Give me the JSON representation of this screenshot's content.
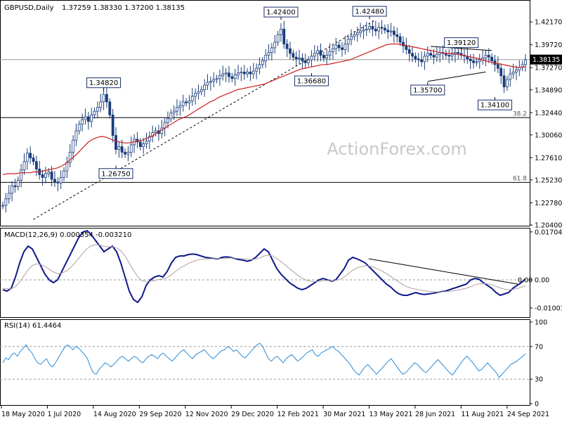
{
  "header": {
    "symbol": "GBPUSD,Daily",
    "ohlc": "1.37259 1.38330 1.37200 1.38135"
  },
  "watermark": "ActionForex.com",
  "colors": {
    "background": "#ffffff",
    "candles": "#1a3d7a",
    "moving_average": "#cc1f1f",
    "macd_line": "#101a8a",
    "signal_line": "#b0a0a0",
    "rsi_line": "#2a8ad4",
    "levels": "#000000",
    "label_box": "#1a2e6a"
  },
  "chart_data": [
    {
      "type": "candlestick",
      "title": "GBPUSD,Daily",
      "subtitle": "1.37259 1.38330 1.37200 1.38135",
      "x_ticks": [
        "18 May 2020",
        "1 Jul 2020",
        "14 Aug 2020",
        "29 Sep 2020",
        "12 Nov 2020",
        "29 Dec 2020",
        "12 Feb 2021",
        "30 Mar 2021",
        "13 May 2021",
        "28 Jun 2021",
        "11 Aug 2021",
        "24 Sep 2021"
      ],
      "y_ticks": [
        "1.42170",
        "1.39720",
        "1.37270",
        "1.34890",
        "1.32440",
        "1.30060",
        "1.27610",
        "1.25230",
        "1.22780",
        "1.20400"
      ],
      "ylim": [
        1.204,
        1.4437
      ],
      "current_price": "1.38135",
      "current_value": 1.38135,
      "annotations": [
        {
          "label": "1.34820",
          "x_index": 33,
          "y": 1.3482
        },
        {
          "label": "1.26750",
          "x_index": 37,
          "y": 1.2675
        },
        {
          "label": "1.42400",
          "x_index": 91,
          "y": 1.424
        },
        {
          "label": "1.36680",
          "x_index": 101,
          "y": 1.3668
        },
        {
          "label": "1.42480",
          "x_index": 120,
          "y": 1.4248
        },
        {
          "label": "1.35700",
          "x_index": 139,
          "y": 1.357
        },
        {
          "label": "1.39120",
          "x_index": 150,
          "y": 1.3912
        },
        {
          "label": "1.34100",
          "x_index": 161,
          "y": 1.341
        }
      ],
      "fib_levels": [
        {
          "label": "38.2",
          "value": 1.3191
        },
        {
          "label": "61.8",
          "value": 1.2497
        }
      ],
      "close": [
        1.225,
        1.232,
        1.238,
        1.246,
        1.245,
        1.252,
        1.263,
        1.272,
        1.281,
        1.276,
        1.272,
        1.264,
        1.258,
        1.255,
        1.259,
        1.261,
        1.253,
        1.25,
        1.249,
        1.255,
        1.262,
        1.271,
        1.282,
        1.295,
        1.305,
        1.312,
        1.317,
        1.32,
        1.315,
        1.322,
        1.326,
        1.33,
        1.336,
        1.344,
        1.336,
        1.322,
        1.3,
        1.285,
        1.288,
        1.282,
        1.28,
        1.282,
        1.29,
        1.296,
        1.293,
        1.288,
        1.291,
        1.294,
        1.299,
        1.303,
        1.305,
        1.302,
        1.308,
        1.314,
        1.318,
        1.324,
        1.326,
        1.33,
        1.332,
        1.336,
        1.335,
        1.337,
        1.342,
        1.345,
        1.347,
        1.349,
        1.354,
        1.357,
        1.358,
        1.36,
        1.361,
        1.364,
        1.366,
        1.367,
        1.363,
        1.361,
        1.365,
        1.367,
        1.368,
        1.366,
        1.368,
        1.366,
        1.369,
        1.372,
        1.376,
        1.38,
        1.386,
        1.389,
        1.394,
        1.4,
        1.408,
        1.414,
        1.398,
        1.393,
        1.388,
        1.384,
        1.382,
        1.383,
        1.38,
        1.378,
        1.381,
        1.385,
        1.388,
        1.391,
        1.386,
        1.383,
        1.386,
        1.39,
        1.393,
        1.397,
        1.394,
        1.392,
        1.398,
        1.403,
        1.406,
        1.408,
        1.41,
        1.412,
        1.413,
        1.414,
        1.417,
        1.414,
        1.412,
        1.416,
        1.415,
        1.413,
        1.411,
        1.412,
        1.408,
        1.406,
        1.4,
        1.396,
        1.392,
        1.388,
        1.385,
        1.382,
        1.381,
        1.379,
        1.385,
        1.388,
        1.386,
        1.384,
        1.387,
        1.389,
        1.388,
        1.386,
        1.385,
        1.387,
        1.389,
        1.388,
        1.386,
        1.385,
        1.382,
        1.38,
        1.378,
        1.379,
        1.381,
        1.383,
        1.386,
        1.384,
        1.38,
        1.376,
        1.372,
        1.364,
        1.352,
        1.36,
        1.366,
        1.368,
        1.37,
        1.373,
        1.376,
        1.381
      ],
      "ma": [
        1.258,
        1.259,
        1.259,
        1.259,
        1.26,
        1.26,
        1.26,
        1.261,
        1.261,
        1.262,
        1.263,
        1.264,
        1.265,
        1.267,
        1.27,
        1.274,
        1.278,
        1.283,
        1.288,
        1.293,
        1.296,
        1.298,
        1.299,
        1.298,
        1.296,
        1.294,
        1.293,
        1.292,
        1.292,
        1.293,
        1.294,
        1.295,
        1.297,
        1.299,
        1.302,
        1.305,
        1.308,
        1.311,
        1.314,
        1.317,
        1.319,
        1.321,
        1.324,
        1.327,
        1.33,
        1.333,
        1.336,
        1.338,
        1.341,
        1.343,
        1.345,
        1.347,
        1.349,
        1.35,
        1.351,
        1.352,
        1.353,
        1.354,
        1.355,
        1.357,
        1.359,
        1.361,
        1.363,
        1.365,
        1.367,
        1.369,
        1.371,
        1.372,
        1.373,
        1.374,
        1.375,
        1.376,
        1.376,
        1.377,
        1.378,
        1.379,
        1.38,
        1.381,
        1.383,
        1.385,
        1.387,
        1.389,
        1.391,
        1.393,
        1.395,
        1.397,
        1.398,
        1.398,
        1.398,
        1.397,
        1.396,
        1.395,
        1.394,
        1.393,
        1.392,
        1.391,
        1.39,
        1.389,
        1.388,
        1.388,
        1.388,
        1.387,
        1.386,
        1.385,
        1.384,
        1.383,
        1.382,
        1.38,
        1.379,
        1.378,
        1.377,
        1.376,
        1.375,
        1.374,
        1.373,
        1.373,
        1.374
      ]
    },
    {
      "type": "line",
      "title": "MACD(12,26,9) 0.000354 -0.003210",
      "y_ticks": [
        "0.017047",
        "0.00",
        "-0.010013"
      ],
      "ylim": [
        -0.013,
        0.018
      ],
      "zero_label_left": "0.00",
      "series": [
        {
          "name": "MACD",
          "values": [
            -0.0035,
            -0.004,
            -0.003,
            0.001,
            0.006,
            0.01,
            0.012,
            0.011,
            0.008,
            0.005,
            0.002,
            0.0,
            -0.001,
            0.0,
            0.003,
            0.006,
            0.009,
            0.012,
            0.015,
            0.017,
            0.0175,
            0.016,
            0.014,
            0.012,
            0.01,
            0.011,
            0.012,
            0.01,
            0.006,
            0.001,
            -0.004,
            -0.007,
            -0.008,
            -0.006,
            -0.002,
            0.0,
            0.001,
            0.0015,
            0.001,
            0.003,
            0.006,
            0.008,
            0.0085,
            0.0085,
            0.009,
            0.0092,
            0.009,
            0.0085,
            0.008,
            0.0078,
            0.0076,
            0.0074,
            0.008,
            0.0082,
            0.008,
            0.0076,
            0.0072,
            0.007,
            0.0066,
            0.007,
            0.008,
            0.0095,
            0.011,
            0.01,
            0.007,
            0.004,
            0.002,
            0.0005,
            -0.001,
            -0.002,
            -0.003,
            -0.0035,
            -0.003,
            -0.002,
            -0.001,
            0.0,
            0.0005,
            0.0,
            -0.0005,
            0.0,
            0.002,
            0.004,
            0.007,
            0.008,
            0.0075,
            0.0068,
            0.006,
            0.0045,
            0.003,
            0.0015,
            0.0,
            -0.0015,
            -0.0025,
            -0.004,
            -0.005,
            -0.0055,
            -0.0055,
            -0.005,
            -0.0045,
            -0.005,
            -0.0052,
            -0.005,
            -0.0048,
            -0.0045,
            -0.0042,
            -0.004,
            -0.0035,
            -0.003,
            -0.0025,
            -0.002,
            -0.0015,
            0.0,
            0.0005,
            0.0002,
            -0.001,
            -0.002,
            -0.003,
            -0.0045,
            -0.0055,
            -0.005,
            -0.0045,
            -0.003,
            -0.002,
            -0.001,
            0.0003
          ]
        },
        {
          "name": "Signal",
          "values": [
            -0.003,
            -0.0032,
            -0.0032,
            -0.0024,
            -0.0008,
            0.0014,
            0.0036,
            0.0051,
            0.0057,
            0.0055,
            0.0048,
            0.0038,
            0.0028,
            0.0022,
            0.0024,
            0.0031,
            0.0043,
            0.0058,
            0.0076,
            0.0095,
            0.0111,
            0.0121,
            0.0125,
            0.0124,
            0.0119,
            0.0117,
            0.0118,
            0.0114,
            0.0103,
            0.0085,
            0.006,
            0.0034,
            0.0011,
            -0.0003,
            -0.0006,
            -0.0005,
            -0.0002,
            0.0001,
            0.0003,
            0.0008,
            0.0018,
            0.003,
            0.0041,
            0.005,
            0.0058,
            0.0065,
            0.007,
            0.0073,
            0.0074,
            0.0075,
            0.0075,
            0.0075,
            0.0076,
            0.0077,
            0.0078,
            0.0077,
            0.0076,
            0.0075,
            0.0073,
            0.0072,
            0.0074,
            0.0078,
            0.0085,
            0.0088,
            0.0085,
            0.0076,
            0.0065,
            0.0053,
            0.004,
            0.0028,
            0.0016,
            0.0006,
            -0.0001,
            -0.0005,
            -0.0006,
            -0.0005,
            -0.0003,
            -0.0002,
            -0.0003,
            -0.0002,
            0.0002,
            0.001,
            0.0022,
            0.0034,
            0.0042,
            0.0047,
            0.005,
            0.0049,
            0.0045,
            0.0039,
            0.0031,
            0.0022,
            0.0012,
            0.0002,
            -0.0008,
            -0.0018,
            -0.0025,
            -0.003,
            -0.0033,
            -0.0036,
            -0.0039,
            -0.0041,
            -0.0042,
            -0.0043,
            -0.0043,
            -0.0042,
            -0.0041,
            -0.0039,
            -0.0036,
            -0.0033,
            -0.003,
            -0.0024,
            -0.0018,
            -0.0014,
            -0.0013,
            -0.0014,
            -0.0017,
            -0.0023,
            -0.0029,
            -0.0033,
            -0.0035,
            -0.0034,
            -0.0031,
            -0.0027,
            -0.0021
          ]
        }
      ],
      "trendline": [
        {
          "x_index": 0.7,
          "y": 0.0075
        },
        {
          "x_index": 0.985,
          "y": -0.0015
        }
      ]
    },
    {
      "type": "line",
      "title": "RSI(14) 61.4464",
      "y_ticks": [
        "100",
        "70",
        "30",
        "0"
      ],
      "ylim": [
        0,
        100
      ],
      "levels": [
        70,
        30
      ],
      "series": [
        {
          "name": "RSI",
          "values": [
            50,
            56,
            54,
            60,
            62,
            58,
            64,
            68,
            72,
            66,
            62,
            55,
            50,
            48,
            52,
            55,
            48,
            45,
            50,
            56,
            62,
            68,
            72,
            70,
            66,
            70,
            68,
            64,
            60,
            55,
            45,
            38,
            36,
            42,
            46,
            50,
            48,
            45,
            48,
            52,
            56,
            58,
            55,
            52,
            55,
            58,
            56,
            52,
            50,
            55,
            58,
            60,
            58,
            55,
            60,
            62,
            58,
            55,
            52,
            56,
            60,
            64,
            66,
            62,
            58,
            55,
            60,
            62,
            64,
            66,
            62,
            58,
            55,
            58,
            62,
            65,
            66,
            70,
            68,
            64,
            66,
            62,
            58,
            56,
            60,
            64,
            68,
            72,
            74,
            70,
            62,
            55,
            52,
            56,
            58,
            54,
            50,
            55,
            58,
            60,
            56,
            52,
            55,
            58,
            62,
            64,
            66,
            60,
            58,
            62,
            64,
            66,
            68,
            70,
            66,
            64,
            60,
            56,
            52,
            48,
            42,
            38,
            35,
            40,
            45,
            48,
            44,
            40,
            36,
            40,
            44,
            48,
            52,
            55,
            50,
            45,
            40,
            36,
            38,
            42,
            46,
            50,
            48,
            44,
            40,
            38,
            42,
            46,
            50,
            54,
            50,
            46,
            42,
            38,
            35,
            40,
            45,
            50,
            55,
            58,
            54,
            50,
            45,
            40,
            42,
            46,
            50,
            46,
            42,
            38,
            32,
            36,
            40,
            44,
            48,
            50,
            52,
            55,
            58,
            61
          ]
        }
      ]
    }
  ]
}
